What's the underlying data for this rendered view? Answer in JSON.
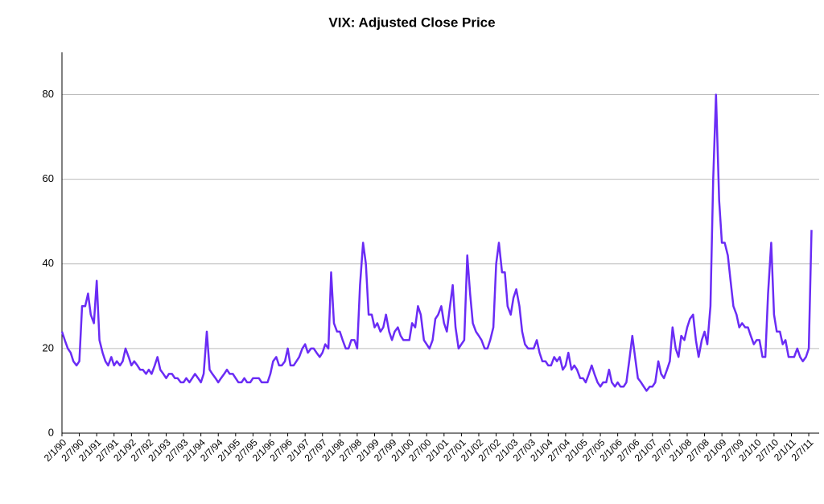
{
  "chart_data": {
    "type": "line",
    "title": "VIX: Adjusted Close Price",
    "x": [
      1990,
      1990.08,
      1990.17,
      1990.25,
      1990.33,
      1990.42,
      1990.5,
      1990.58,
      1990.67,
      1990.75,
      1990.83,
      1990.92,
      1991,
      1991.08,
      1991.17,
      1991.25,
      1991.33,
      1991.42,
      1991.5,
      1991.58,
      1991.67,
      1991.75,
      1991.83,
      1991.92,
      1992,
      1992.08,
      1992.17,
      1992.25,
      1992.33,
      1992.42,
      1992.5,
      1992.58,
      1992.67,
      1992.75,
      1992.83,
      1992.92,
      1993,
      1993.08,
      1993.17,
      1993.25,
      1993.33,
      1993.42,
      1993.5,
      1993.58,
      1993.67,
      1993.75,
      1993.83,
      1993.92,
      1994,
      1994.08,
      1994.17,
      1994.25,
      1994.33,
      1994.42,
      1994.5,
      1994.58,
      1994.67,
      1994.75,
      1994.83,
      1994.92,
      1995,
      1995.08,
      1995.17,
      1995.25,
      1995.33,
      1995.42,
      1995.5,
      1995.58,
      1995.67,
      1995.75,
      1995.83,
      1995.92,
      1996,
      1996.08,
      1996.17,
      1996.25,
      1996.33,
      1996.42,
      1996.5,
      1996.58,
      1996.67,
      1996.75,
      1996.83,
      1996.92,
      1997,
      1997.08,
      1997.17,
      1997.25,
      1997.33,
      1997.42,
      1997.5,
      1997.58,
      1997.67,
      1997.75,
      1997.83,
      1997.92,
      1998,
      1998.08,
      1998.17,
      1998.25,
      1998.33,
      1998.42,
      1998.5,
      1998.58,
      1998.67,
      1998.75,
      1998.83,
      1998.92,
      1999,
      1999.08,
      1999.17,
      1999.25,
      1999.33,
      1999.42,
      1999.5,
      1999.58,
      1999.67,
      1999.75,
      1999.83,
      1999.92,
      2000,
      2000.08,
      2000.17,
      2000.25,
      2000.33,
      2000.42,
      2000.5,
      2000.58,
      2000.67,
      2000.75,
      2000.83,
      2000.92,
      2001,
      2001.08,
      2001.17,
      2001.25,
      2001.33,
      2001.42,
      2001.5,
      2001.58,
      2001.67,
      2001.75,
      2001.83,
      2001.92,
      2002,
      2002.08,
      2002.17,
      2002.25,
      2002.33,
      2002.42,
      2002.5,
      2002.58,
      2002.67,
      2002.75,
      2002.83,
      2002.92,
      2003,
      2003.08,
      2003.17,
      2003.25,
      2003.33,
      2003.42,
      2003.5,
      2003.58,
      2003.67,
      2003.75,
      2003.83,
      2003.92,
      2004,
      2004.08,
      2004.17,
      2004.25,
      2004.33,
      2004.42,
      2004.5,
      2004.58,
      2004.67,
      2004.75,
      2004.83,
      2004.92,
      2005,
      2005.08,
      2005.17,
      2005.25,
      2005.33,
      2005.42,
      2005.5,
      2005.58,
      2005.67,
      2005.75,
      2005.83,
      2005.92,
      2006,
      2006.08,
      2006.17,
      2006.25,
      2006.33,
      2006.42,
      2006.5,
      2006.58,
      2006.67,
      2006.75,
      2006.83,
      2006.92,
      2007,
      2007.08,
      2007.17,
      2007.25,
      2007.33,
      2007.42,
      2007.5,
      2007.58,
      2007.67,
      2007.75,
      2007.83,
      2007.92,
      2008,
      2008.08,
      2008.17,
      2008.25,
      2008.33,
      2008.42,
      2008.5,
      2008.58,
      2008.67,
      2008.75,
      2008.83,
      2008.92,
      2009,
      2009.08,
      2009.17,
      2009.25,
      2009.33,
      2009.42,
      2009.5,
      2009.58,
      2009.67,
      2009.75,
      2009.83,
      2009.92,
      2010,
      2010.08,
      2010.17,
      2010.25,
      2010.33,
      2010.42,
      2010.5,
      2010.58,
      2010.67,
      2010.75,
      2010.83,
      2010.92,
      2011,
      2011.08,
      2011.17,
      2011.25,
      2011.33,
      2011.42,
      2011.5,
      2011.58
    ],
    "series": [
      {
        "color": "#6a2cf5",
        "values": [
          24,
          22,
          20,
          19,
          17,
          16,
          17,
          30,
          30,
          33,
          28,
          26,
          36,
          22,
          19,
          17,
          16,
          18,
          16,
          17,
          16,
          17,
          20,
          18,
          16,
          17,
          16,
          15,
          15,
          14,
          15,
          14,
          16,
          18,
          15,
          14,
          13,
          14,
          14,
          13,
          13,
          12,
          12,
          13,
          12,
          13,
          14,
          13,
          12,
          14,
          24,
          15,
          14,
          13,
          12,
          13,
          14,
          15,
          14,
          14,
          13,
          12,
          12,
          13,
          12,
          12,
          13,
          13,
          13,
          12,
          12,
          12,
          14,
          17,
          18,
          16,
          16,
          17,
          20,
          16,
          16,
          17,
          18,
          20,
          21,
          19,
          20,
          20,
          19,
          18,
          19,
          21,
          20,
          38,
          26,
          24,
          24,
          22,
          20,
          20,
          22,
          22,
          20,
          35,
          45,
          40,
          28,
          28,
          25,
          26,
          24,
          25,
          28,
          24,
          22,
          24,
          25,
          23,
          22,
          22,
          22,
          26,
          25,
          30,
          28,
          22,
          21,
          20,
          22,
          27,
          28,
          30,
          26,
          24,
          30,
          35,
          25,
          20,
          21,
          22,
          42,
          33,
          26,
          24,
          23,
          22,
          20,
          20,
          22,
          25,
          40,
          45,
          38,
          38,
          30,
          28,
          32,
          34,
          30,
          24,
          21,
          20,
          20,
          20,
          22,
          19,
          17,
          17,
          16,
          16,
          18,
          17,
          18,
          15,
          16,
          19,
          15,
          16,
          15,
          13,
          13,
          12,
          14,
          16,
          14,
          12,
          11,
          12,
          12,
          15,
          12,
          11,
          12,
          11,
          11,
          12,
          17,
          23,
          18,
          13,
          12,
          11,
          10,
          11,
          11,
          12,
          17,
          14,
          13,
          15,
          17,
          25,
          20,
          18,
          23,
          22,
          25,
          27,
          28,
          22,
          18,
          22,
          24,
          21,
          30,
          60,
          80,
          55,
          45,
          45,
          42,
          36,
          30,
          28,
          25,
          26,
          25,
          25,
          23,
          21,
          22,
          22,
          18,
          18,
          33,
          45,
          28,
          24,
          24,
          21,
          22,
          18,
          18,
          18,
          20,
          18,
          17,
          18,
          20,
          48
        ]
      }
    ],
    "xlim": [
      1990,
      2011.8
    ],
    "xticks": [
      {
        "value": 1990,
        "label": "2/1/90"
      },
      {
        "value": 1990.5,
        "label": "2/7/90"
      },
      {
        "value": 1991,
        "label": "2/1/91"
      },
      {
        "value": 1991.5,
        "label": "2/7/91"
      },
      {
        "value": 1992,
        "label": "2/1/92"
      },
      {
        "value": 1992.5,
        "label": "2/7/92"
      },
      {
        "value": 1993,
        "label": "2/1/93"
      },
      {
        "value": 1993.5,
        "label": "2/7/93"
      },
      {
        "value": 1994,
        "label": "2/1/94"
      },
      {
        "value": 1994.5,
        "label": "2/7/94"
      },
      {
        "value": 1995,
        "label": "2/1/95"
      },
      {
        "value": 1995.5,
        "label": "2/7/95"
      },
      {
        "value": 1996,
        "label": "2/1/96"
      },
      {
        "value": 1996.5,
        "label": "2/7/96"
      },
      {
        "value": 1997,
        "label": "2/1/97"
      },
      {
        "value": 1997.5,
        "label": "2/7/97"
      },
      {
        "value": 1998,
        "label": "2/1/98"
      },
      {
        "value": 1998.5,
        "label": "2/7/98"
      },
      {
        "value": 1999,
        "label": "2/1/99"
      },
      {
        "value": 1999.5,
        "label": "2/7/99"
      },
      {
        "value": 2000,
        "label": "2/1/00"
      },
      {
        "value": 2000.5,
        "label": "2/7/00"
      },
      {
        "value": 2001,
        "label": "2/1/01"
      },
      {
        "value": 2001.5,
        "label": "2/7/01"
      },
      {
        "value": 2002,
        "label": "2/1/02"
      },
      {
        "value": 2002.5,
        "label": "2/7/02"
      },
      {
        "value": 2003,
        "label": "2/1/03"
      },
      {
        "value": 2003.5,
        "label": "2/7/03"
      },
      {
        "value": 2004,
        "label": "2/1/04"
      },
      {
        "value": 2004.5,
        "label": "2/7/04"
      },
      {
        "value": 2005,
        "label": "2/1/05"
      },
      {
        "value": 2005.5,
        "label": "2/7/05"
      },
      {
        "value": 2006,
        "label": "2/1/06"
      },
      {
        "value": 2006.5,
        "label": "2/7/06"
      },
      {
        "value": 2007,
        "label": "2/1/07"
      },
      {
        "value": 2007.5,
        "label": "2/7/07"
      },
      {
        "value": 2008,
        "label": "2/1/08"
      },
      {
        "value": 2008.5,
        "label": "2/7/08"
      },
      {
        "value": 2009,
        "label": "2/1/09"
      },
      {
        "value": 2009.5,
        "label": "2/7/09"
      },
      {
        "value": 2010,
        "label": "2/1/10"
      },
      {
        "value": 2010.5,
        "label": "2/7/10"
      },
      {
        "value": 2011,
        "label": "2/1/11"
      },
      {
        "value": 2011.5,
        "label": "2/7/11"
      }
    ],
    "ylim": [
      0,
      90
    ],
    "yticks": [
      0,
      20,
      40,
      60,
      80
    ],
    "grid": true
  }
}
